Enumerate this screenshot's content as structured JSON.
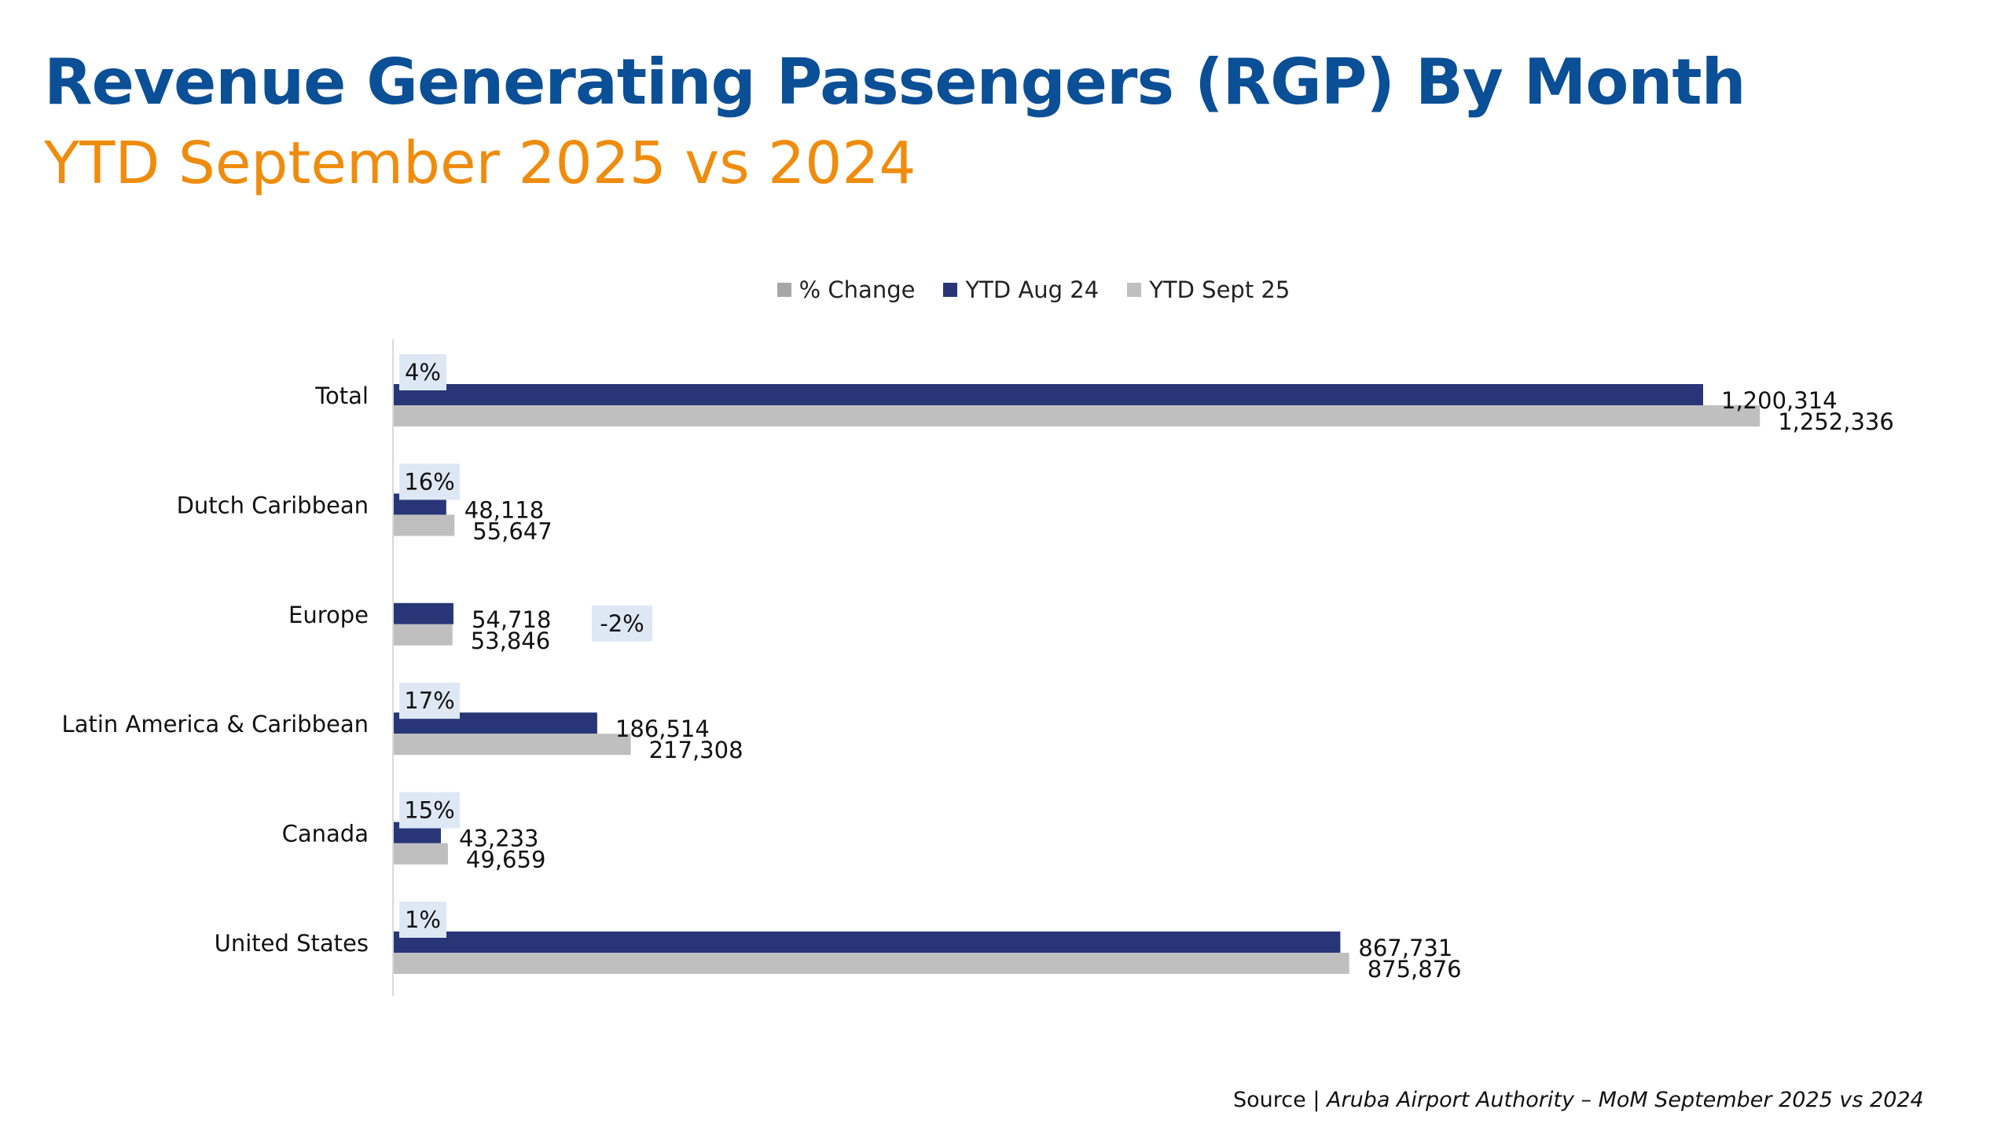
{
  "header": {
    "title": "Revenue Generating Passengers (RGP) By Month",
    "subtitle": "YTD September 2025 vs 2024"
  },
  "colors": {
    "title": "#0b4f96",
    "subtitle": "#ef8c0e",
    "ytd_aug_24": "#283677",
    "ytd_sept_25": "#bfbfbf",
    "pct_change": "#a6a6a6",
    "pct_label_bg": "#dde8f4"
  },
  "chart_data": {
    "type": "bar",
    "orientation": "horizontal",
    "categories": [
      "Total",
      "Dutch Caribbean",
      "Europe",
      "Latin America & Caribbean",
      "Canada",
      "United States"
    ],
    "series": [
      {
        "name": "% Change",
        "values": [
          4,
          16,
          -2,
          17,
          15,
          1
        ],
        "labels": [
          "4%",
          "16%",
          "-2%",
          "17%",
          "15%",
          "1%"
        ]
      },
      {
        "name": "YTD Aug 24",
        "values": [
          1200314,
          48118,
          54718,
          186514,
          43233,
          867731
        ],
        "labels": [
          "1,200,314",
          "48,118",
          "54,718",
          "186,514",
          "43,233",
          "867,731"
        ]
      },
      {
        "name": "YTD Sept 25",
        "values": [
          1252336,
          55647,
          53846,
          217308,
          49659,
          875876
        ],
        "labels": [
          "1,252,336",
          "55,647",
          "53,846",
          "217,308",
          "49,659",
          "875,876"
        ]
      }
    ],
    "legend_position": "top",
    "grid": false
  },
  "footer": {
    "source_prefix": "Source | ",
    "source_text": "Aruba Airport Authority – MoM September 2025 vs 2024"
  }
}
